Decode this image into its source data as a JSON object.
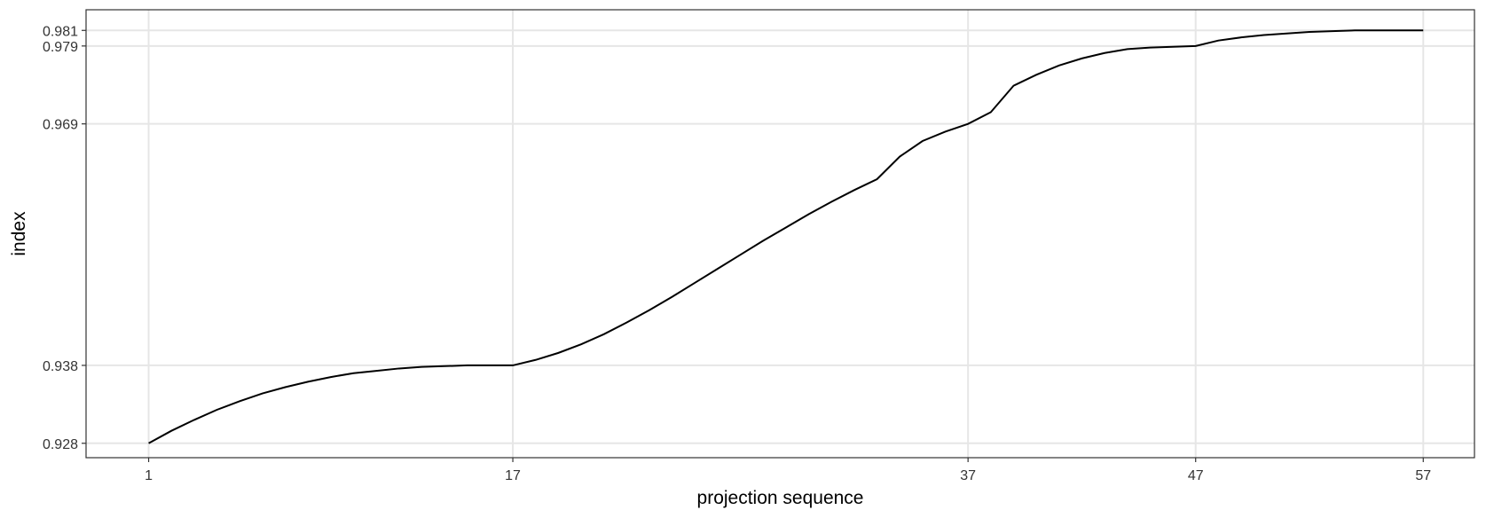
{
  "chart_data": {
    "type": "line",
    "xlabel": "projection sequence",
    "ylabel": "index",
    "x_ticks": [
      1,
      17,
      37,
      47,
      57
    ],
    "y_ticks": [
      0.928,
      0.938,
      0.969,
      0.979,
      0.981
    ],
    "xlim": [
      -1.75,
      59.25
    ],
    "ylim": [
      0.92615,
      0.98365
    ],
    "grid": true,
    "legend": "none",
    "colors": {
      "line": "#000000",
      "grid": "#e6e6e6",
      "border": "#333333"
    },
    "series": [
      {
        "x": [
          1,
          2,
          3,
          4,
          5,
          6,
          7,
          8,
          9,
          10,
          11,
          12,
          13,
          14,
          15,
          16,
          17,
          18,
          19,
          20,
          21,
          22,
          23,
          24,
          25,
          26,
          27,
          28,
          29,
          30,
          31,
          32,
          33,
          34,
          35,
          36,
          37,
          38,
          39,
          40,
          41,
          42,
          43,
          44,
          45,
          46,
          47,
          48,
          49,
          50,
          51,
          52,
          53,
          54,
          55,
          56,
          57
        ],
        "y": [
          0.928,
          0.9296,
          0.931,
          0.9323,
          0.9334,
          0.9344,
          0.9352,
          0.9359,
          0.9365,
          0.937,
          0.9373,
          0.9376,
          0.9378,
          0.9379,
          0.938,
          0.938,
          0.938,
          0.9387,
          0.9396,
          0.9407,
          0.942,
          0.9435,
          0.9451,
          0.9468,
          0.9486,
          0.9504,
          0.9522,
          0.954,
          0.9557,
          0.9574,
          0.959,
          0.9605,
          0.9619,
          0.9648,
          0.9668,
          0.968,
          0.969,
          0.9705,
          0.9739,
          0.9753,
          0.9765,
          0.9774,
          0.9781,
          0.9786,
          0.9788,
          0.9789,
          0.979,
          0.9797,
          0.9801,
          0.9804,
          0.9806,
          0.9808,
          0.9809,
          0.981,
          0.981,
          0.981,
          0.981
        ]
      }
    ]
  }
}
